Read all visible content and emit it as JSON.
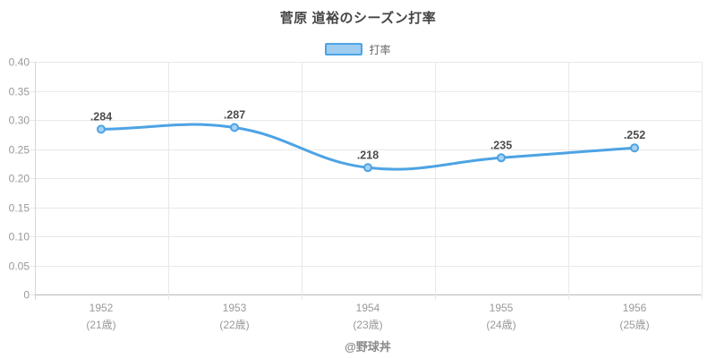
{
  "header": {
    "title": "菅原 道裕のシーズン打率"
  },
  "legend": {
    "label": "打率"
  },
  "footer": {
    "credit": "@野球丼"
  },
  "colors": {
    "line": "#4da3e4",
    "point_fill": "#a5d2f3",
    "grid": "#e8e8e8",
    "axis_y_border": "#d6d6d6",
    "axis_x_border": "#b9b9b9",
    "tick_text": "#999999",
    "value_label_text": "#4d4d4d",
    "title_text": "#444444",
    "legend_text": "#666666",
    "credit_text": "#8a8a8a"
  },
  "chart_data": {
    "type": "line",
    "title": "菅原 道裕のシーズン打率",
    "categories": [
      "1952",
      "1953",
      "1954",
      "1955",
      "1956"
    ],
    "category_sublabels": [
      "(21歳)",
      "(22歳)",
      "(23歳)",
      "(24歳)",
      "(25歳)"
    ],
    "series": [
      {
        "name": "打率",
        "values": [
          0.284,
          0.287,
          0.218,
          0.235,
          0.252
        ],
        "point_labels": [
          ".284",
          ".287",
          ".218",
          ".235",
          ".252"
        ]
      }
    ],
    "xlabel": "",
    "ylabel": "",
    "ylim": [
      0,
      0.4
    ],
    "ytick_step": 0.05,
    "ytick_labels": [
      "0",
      "0.05",
      "0.10",
      "0.15",
      "0.20",
      "0.25",
      "0.30",
      "0.35",
      "0.40"
    ],
    "grid": true,
    "line_smoothing": 0.4,
    "legend_position": "top"
  }
}
